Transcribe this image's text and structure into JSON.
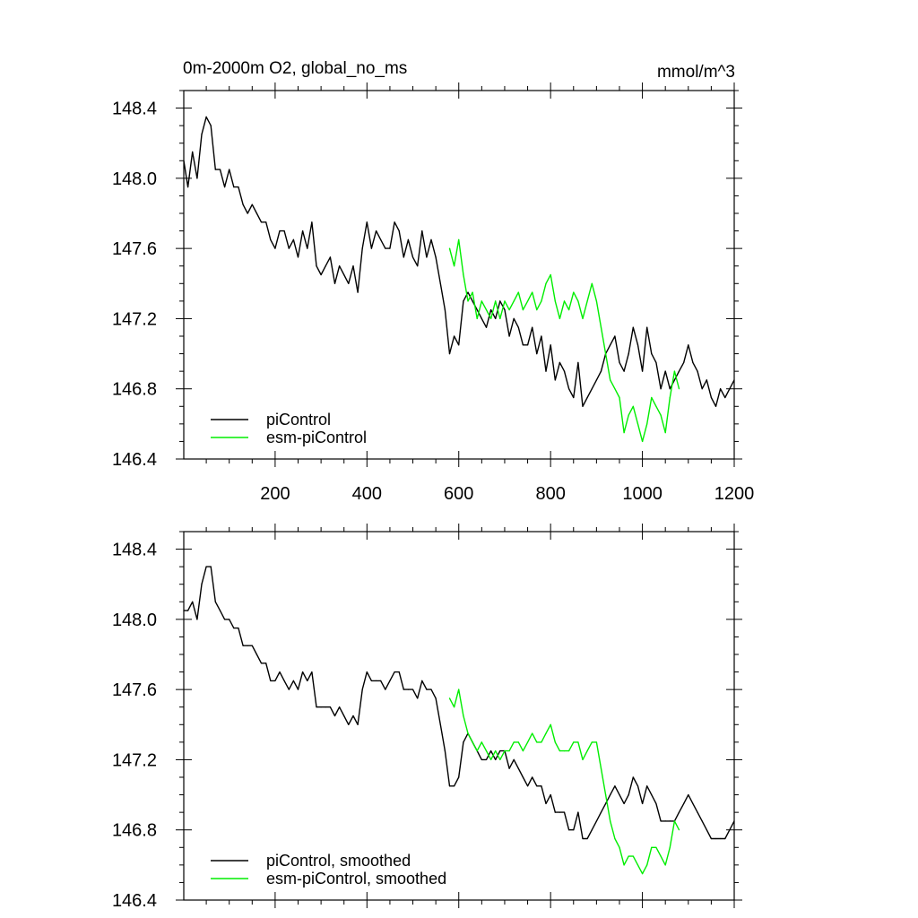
{
  "chart_data": [
    {
      "type": "line",
      "title": "0m-2000m O2, global_no_ms",
      "units": "mmol/m^3",
      "xlim": [
        1,
        1200
      ],
      "ylim": [
        146.4,
        148.5
      ],
      "xticks": [
        200,
        400,
        600,
        800,
        1000,
        1200
      ],
      "xtick_labels": [
        "200",
        "400",
        "600",
        "800",
        "1000",
        "1200"
      ],
      "yticks": [
        146.4,
        146.8,
        147.2,
        147.6,
        148.0,
        148.4
      ],
      "ytick_labels": [
        "146.4",
        "146.8",
        "147.2",
        "147.6",
        "148.0",
        "148.4"
      ],
      "grid": false,
      "legend_position": "bottom-left",
      "series": [
        {
          "name": "piControl",
          "color": "#000000",
          "x": [
            1,
            10,
            20,
            30,
            40,
            50,
            60,
            70,
            80,
            90,
            100,
            110,
            120,
            130,
            140,
            150,
            160,
            170,
            180,
            190,
            200,
            210,
            220,
            230,
            240,
            250,
            260,
            270,
            280,
            290,
            300,
            310,
            320,
            330,
            340,
            350,
            360,
            370,
            380,
            390,
            400,
            410,
            420,
            430,
            440,
            450,
            460,
            470,
            480,
            490,
            500,
            510,
            520,
            530,
            540,
            550,
            560,
            570,
            580,
            590,
            600,
            610,
            620,
            630,
            640,
            650,
            660,
            670,
            680,
            690,
            700,
            710,
            720,
            730,
            740,
            750,
            760,
            770,
            780,
            790,
            800,
            810,
            820,
            830,
            840,
            850,
            860,
            870,
            880,
            890,
            900,
            910,
            920,
            930,
            940,
            950,
            960,
            970,
            980,
            990,
            1000,
            1010,
            1020,
            1030,
            1040,
            1050,
            1060,
            1070,
            1080,
            1090,
            1100,
            1110,
            1120,
            1130,
            1140,
            1150,
            1160,
            1170,
            1180,
            1190,
            1200
          ],
          "values": [
            148.1,
            147.95,
            148.15,
            148.0,
            148.25,
            148.35,
            148.3,
            148.05,
            148.05,
            147.95,
            148.05,
            147.95,
            147.95,
            147.85,
            147.8,
            147.85,
            147.8,
            147.75,
            147.75,
            147.65,
            147.6,
            147.7,
            147.7,
            147.6,
            147.65,
            147.55,
            147.7,
            147.6,
            147.75,
            147.5,
            147.45,
            147.5,
            147.55,
            147.4,
            147.5,
            147.45,
            147.4,
            147.5,
            147.35,
            147.6,
            147.75,
            147.6,
            147.7,
            147.65,
            147.6,
            147.6,
            147.75,
            147.7,
            147.55,
            147.65,
            147.55,
            147.5,
            147.7,
            147.55,
            147.65,
            147.55,
            147.4,
            147.25,
            147.0,
            147.1,
            147.05,
            147.3,
            147.35,
            147.3,
            147.25,
            147.2,
            147.15,
            147.25,
            147.2,
            147.3,
            147.25,
            147.1,
            147.2,
            147.15,
            147.05,
            147.05,
            147.15,
            147.0,
            147.1,
            146.9,
            147.05,
            146.85,
            146.95,
            146.9,
            146.8,
            146.75,
            146.95,
            146.7,
            146.75,
            146.8,
            146.85,
            146.9,
            147.0,
            147.05,
            147.1,
            146.95,
            146.9,
            147.0,
            147.15,
            147.05,
            146.9,
            147.15,
            147.0,
            146.95,
            146.8,
            146.9,
            146.8,
            146.85,
            146.9,
            146.95,
            147.05,
            146.95,
            146.9,
            146.8,
            146.85,
            146.75,
            146.7,
            146.8,
            146.75,
            146.8,
            146.85
          ]
        },
        {
          "name": "esm-piControl",
          "color": "#00ee00",
          "x": [
            580,
            590,
            600,
            610,
            620,
            630,
            640,
            650,
            660,
            670,
            680,
            690,
            700,
            710,
            720,
            730,
            740,
            750,
            760,
            770,
            780,
            790,
            800,
            810,
            820,
            830,
            840,
            850,
            860,
            870,
            880,
            890,
            900,
            910,
            920,
            930,
            940,
            950,
            960,
            970,
            980,
            990,
            1000,
            1010,
            1020,
            1030,
            1040,
            1050,
            1060,
            1070,
            1080
          ],
          "values": [
            147.6,
            147.5,
            147.65,
            147.45,
            147.3,
            147.35,
            147.2,
            147.3,
            147.25,
            147.2,
            147.3,
            147.2,
            147.3,
            147.25,
            147.3,
            147.35,
            147.25,
            147.3,
            147.35,
            147.25,
            147.3,
            147.4,
            147.45,
            147.3,
            147.2,
            147.3,
            147.25,
            147.35,
            147.3,
            147.2,
            147.3,
            147.4,
            147.3,
            147.15,
            147.0,
            146.85,
            146.8,
            146.75,
            146.55,
            146.65,
            146.7,
            146.6,
            146.5,
            146.6,
            146.75,
            146.7,
            146.65,
            146.55,
            146.75,
            146.9,
            146.8
          ]
        }
      ]
    },
    {
      "type": "line",
      "xlim": [
        1,
        1200
      ],
      "ylim": [
        146.4,
        148.5
      ],
      "xticks": [
        200,
        400,
        600,
        800,
        1000,
        1200
      ],
      "yticks": [
        146.4,
        146.8,
        147.2,
        147.6,
        148.0,
        148.4
      ],
      "ytick_labels": [
        "146.4",
        "146.8",
        "147.2",
        "147.6",
        "148.0",
        "148.4"
      ],
      "grid": false,
      "legend_position": "bottom-left",
      "series": [
        {
          "name": "piControl, smoothed",
          "color": "#000000",
          "x": [
            1,
            10,
            20,
            30,
            40,
            50,
            60,
            70,
            80,
            90,
            100,
            110,
            120,
            130,
            140,
            150,
            160,
            170,
            180,
            190,
            200,
            210,
            220,
            230,
            240,
            250,
            260,
            270,
            280,
            290,
            300,
            310,
            320,
            330,
            340,
            350,
            360,
            370,
            380,
            390,
            400,
            410,
            420,
            430,
            440,
            450,
            460,
            470,
            480,
            490,
            500,
            510,
            520,
            530,
            540,
            550,
            560,
            570,
            580,
            590,
            600,
            610,
            620,
            630,
            640,
            650,
            660,
            670,
            680,
            690,
            700,
            710,
            720,
            730,
            740,
            750,
            760,
            770,
            780,
            790,
            800,
            810,
            820,
            830,
            840,
            850,
            860,
            870,
            880,
            890,
            900,
            910,
            920,
            930,
            940,
            950,
            960,
            970,
            980,
            990,
            1000,
            1010,
            1020,
            1030,
            1040,
            1050,
            1060,
            1070,
            1080,
            1090,
            1100,
            1110,
            1120,
            1130,
            1140,
            1150,
            1160,
            1170,
            1180,
            1190,
            1200
          ],
          "values": [
            148.05,
            148.05,
            148.1,
            148.0,
            148.2,
            148.3,
            148.3,
            148.1,
            148.05,
            148.0,
            148.0,
            147.95,
            147.95,
            147.85,
            147.85,
            147.85,
            147.8,
            147.75,
            147.75,
            147.65,
            147.65,
            147.7,
            147.65,
            147.6,
            147.65,
            147.6,
            147.7,
            147.65,
            147.7,
            147.5,
            147.5,
            147.5,
            147.5,
            147.45,
            147.5,
            147.45,
            147.4,
            147.45,
            147.4,
            147.6,
            147.7,
            147.65,
            147.65,
            147.65,
            147.6,
            147.65,
            147.7,
            147.7,
            147.6,
            147.6,
            147.6,
            147.55,
            147.65,
            147.6,
            147.6,
            147.55,
            147.4,
            147.25,
            147.05,
            147.05,
            147.1,
            147.3,
            147.35,
            147.3,
            147.25,
            147.2,
            147.2,
            147.25,
            147.2,
            147.25,
            147.25,
            147.15,
            147.2,
            147.15,
            147.1,
            147.05,
            147.1,
            147.05,
            147.05,
            146.95,
            147.0,
            146.9,
            146.9,
            146.9,
            146.8,
            146.8,
            146.9,
            146.75,
            146.75,
            146.8,
            146.85,
            146.9,
            146.95,
            147.0,
            147.05,
            147.0,
            146.95,
            147.0,
            147.1,
            147.05,
            146.95,
            147.05,
            147.0,
            146.95,
            146.85,
            146.85,
            146.85,
            146.85,
            146.9,
            146.95,
            147.0,
            146.95,
            146.9,
            146.85,
            146.8,
            146.75,
            146.75,
            146.75,
            146.75,
            146.8,
            146.85
          ]
        },
        {
          "name": "esm-piControl, smoothed",
          "color": "#00ee00",
          "x": [
            580,
            590,
            600,
            610,
            620,
            630,
            640,
            650,
            660,
            670,
            680,
            690,
            700,
            710,
            720,
            730,
            740,
            750,
            760,
            770,
            780,
            790,
            800,
            810,
            820,
            830,
            840,
            850,
            860,
            870,
            880,
            890,
            900,
            910,
            920,
            930,
            940,
            950,
            960,
            970,
            980,
            990,
            1000,
            1010,
            1020,
            1030,
            1040,
            1050,
            1060,
            1070,
            1080
          ],
          "values": [
            147.55,
            147.5,
            147.6,
            147.45,
            147.35,
            147.3,
            147.25,
            147.3,
            147.25,
            147.2,
            147.25,
            147.2,
            147.25,
            147.25,
            147.3,
            147.3,
            147.25,
            147.3,
            147.35,
            147.3,
            147.3,
            147.35,
            147.4,
            147.3,
            147.25,
            147.25,
            147.25,
            147.3,
            147.3,
            147.2,
            147.25,
            147.3,
            147.3,
            147.15,
            147.0,
            146.85,
            146.75,
            146.7,
            146.6,
            146.65,
            146.65,
            146.6,
            146.55,
            146.6,
            146.7,
            146.7,
            146.65,
            146.6,
            146.7,
            146.85,
            146.8
          ]
        }
      ]
    }
  ]
}
